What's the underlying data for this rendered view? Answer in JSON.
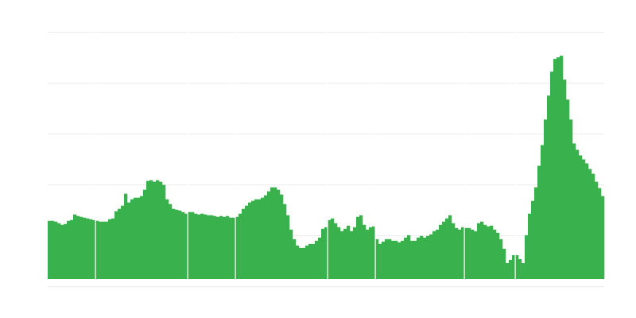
{
  "chart_data": {
    "type": "bar",
    "title": "",
    "xlabel": "",
    "ylabel": "",
    "ylim": [
      0,
      310
    ],
    "grid": true,
    "bar_color": "#39b14c",
    "grid_color": "#ececec",
    "values": [
      73,
      73,
      72,
      70,
      68,
      69,
      73,
      74,
      81,
      79,
      78,
      77,
      76,
      75,
      74,
      73,
      72,
      72,
      72,
      75,
      76,
      85,
      88,
      92,
      107,
      96,
      100,
      102,
      102,
      104,
      112,
      123,
      124,
      122,
      124,
      122,
      118,
      100,
      94,
      88,
      87,
      86,
      84,
      82,
      84,
      84,
      82,
      81,
      82,
      81,
      80,
      80,
      79,
      78,
      79,
      78,
      79,
      77,
      77,
      78,
      82,
      88,
      92,
      96,
      98,
      100,
      100,
      102,
      105,
      110,
      115,
      115,
      112,
      106,
      94,
      80,
      62,
      50,
      42,
      39,
      39,
      42,
      44,
      44,
      48,
      52,
      63,
      65,
      74,
      76,
      70,
      65,
      60,
      63,
      67,
      60,
      65,
      78,
      80,
      68,
      62,
      65,
      66,
      50,
      44,
      47,
      50,
      50,
      48,
      48,
      46,
      48,
      52,
      55,
      48,
      48,
      52,
      54,
      52,
      54,
      56,
      60,
      62,
      68,
      72,
      76,
      80,
      70,
      64,
      62,
      65,
      64,
      64,
      62,
      60,
      70,
      72,
      68,
      66,
      67,
      62,
      58,
      50,
      38,
      20,
      24,
      30,
      30,
      25,
      20,
      55,
      82,
      98,
      115,
      142,
      168,
      200,
      230,
      260,
      276,
      278,
      280,
      250,
      225,
      200,
      170,
      162,
      155,
      150,
      145,
      138,
      132,
      122,
      114,
      104
    ],
    "gaps_after_index": [
      14,
      43,
      58,
      87,
      102,
      130,
      146
    ]
  }
}
